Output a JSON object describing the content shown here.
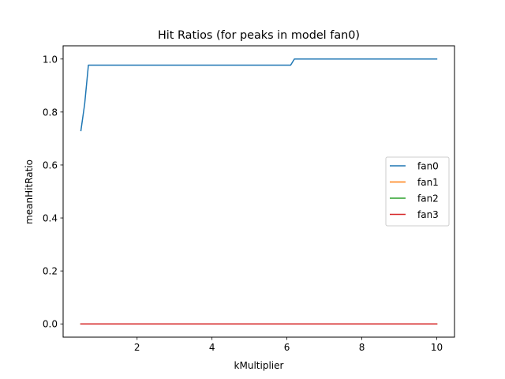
{
  "chart_data": {
    "type": "line",
    "title": "Hit Ratios (for peaks in model fan0)",
    "xlabel": "kMultiplier",
    "ylabel": "meanHitRatio",
    "xlim": [
      0.025,
      10.475
    ],
    "ylim": [
      -0.05,
      1.05
    ],
    "xticks": [
      2,
      4,
      6,
      8,
      10
    ],
    "xtick_labels": [
      "2",
      "4",
      "6",
      "8",
      "10"
    ],
    "yticks": [
      0.0,
      0.2,
      0.4,
      0.6,
      0.8,
      1.0
    ],
    "ytick_labels": [
      "0.0",
      "0.2",
      "0.4",
      "0.6",
      "0.8",
      "1.0"
    ],
    "grid": false,
    "legend_position": "center-right",
    "series": [
      {
        "name": "fan0",
        "color": "#1f77b4",
        "x": [
          0.5,
          0.6,
          0.7,
          1.0,
          2.0,
          3.0,
          4.0,
          5.0,
          6.0,
          6.1,
          6.2,
          7.0,
          8.0,
          9.0,
          10.0
        ],
        "y": [
          0.73,
          0.83,
          0.977,
          0.977,
          0.977,
          0.977,
          0.977,
          0.977,
          0.977,
          0.977,
          1.0,
          1.0,
          1.0,
          1.0,
          1.0
        ]
      },
      {
        "name": "fan1",
        "color": "#ff7f0e",
        "x": [
          0.5,
          10.0
        ],
        "y": [
          0.0,
          0.0
        ]
      },
      {
        "name": "fan2",
        "color": "#2ca02c",
        "x": [
          0.5,
          10.0
        ],
        "y": [
          0.0,
          0.0
        ]
      },
      {
        "name": "fan3",
        "color": "#d62728",
        "x": [
          0.5,
          10.0
        ],
        "y": [
          0.0,
          0.0
        ]
      }
    ]
  }
}
